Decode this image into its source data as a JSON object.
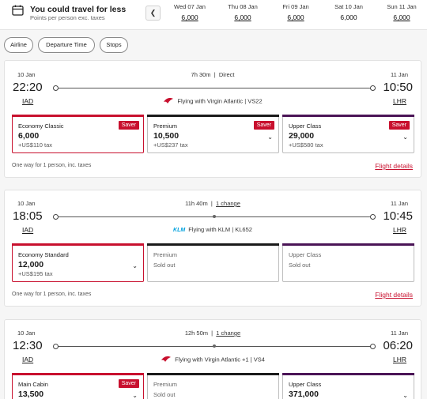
{
  "promo": {
    "title": "You could travel for less",
    "subtitle": "Points per person exc. taxes"
  },
  "date_strip": [
    {
      "label": "Wed 07 Jan",
      "points": "6,000"
    },
    {
      "label": "Thu 08 Jan",
      "points": "6,000"
    },
    {
      "label": "Fri 09 Jan",
      "points": "6,000"
    },
    {
      "label": "Sat 10 Jan",
      "points": "6,000"
    },
    {
      "label": "Sun 11 Jan",
      "points": "6,000"
    }
  ],
  "filters": [
    "Airline",
    "Departure Time",
    "Stops"
  ],
  "colors": {
    "brand": "#c8102e",
    "premium_bar": "#1a1a1a",
    "upper_bar": "#4a1456"
  },
  "icons": {
    "calendar": "calendar-icon",
    "prev": "chevron-left-icon",
    "dropdown": "chevron-down-icon",
    "virgin": "virgin-atlantic-logo",
    "klm": "klm-logo"
  },
  "flights": [
    {
      "dep_date": "10 Jan",
      "arr_date": "11 Jan",
      "duration": "7h 30m",
      "stops": "Direct",
      "dep_time": "22:20",
      "arr_time": "10:50",
      "dep_code": "IAD",
      "arr_code": "LHR",
      "operator": "Flying with Virgin Atlantic | VS22",
      "fares": [
        {
          "cabin": "Economy Classic",
          "points": "6,000",
          "tax": "+US$110 tax",
          "badge": "Saver"
        },
        {
          "cabin": "Premium",
          "points": "10,500",
          "tax": "+US$237 tax",
          "badge": "Saver"
        },
        {
          "cabin": "Upper Class",
          "points": "29,000",
          "tax": "+US$580 tax",
          "badge": "Saver"
        }
      ],
      "note": "One way for 1 person, inc. taxes",
      "details": "Flight details"
    },
    {
      "dep_date": "10 Jan",
      "arr_date": "11 Jan",
      "duration": "11h 40m",
      "stops": "1 change",
      "dep_time": "18:05",
      "arr_time": "10:45",
      "dep_code": "IAD",
      "arr_code": "LHR",
      "operator": "Flying with KLM | KL652",
      "operator_logo_text": "KLM",
      "fares": [
        {
          "cabin": "Economy Standard",
          "points": "12,000",
          "tax": "+US$195 tax"
        },
        {
          "cabin": "Premium",
          "status": "Sold out"
        },
        {
          "cabin": "Upper Class",
          "status": "Sold out"
        }
      ],
      "note": "One way for 1 person, inc. taxes",
      "details": "Flight details"
    },
    {
      "dep_date": "10 Jan",
      "arr_date": "11 Jan",
      "duration": "12h 50m",
      "stops": "1 change",
      "dep_time": "12:30",
      "arr_time": "06:20",
      "dep_code": "IAD",
      "arr_code": "LHR",
      "operator": "Flying with Virgin Atlantic +1 | VS4",
      "fares": [
        {
          "cabin": "Main Cabin",
          "points": "13,500",
          "badge": "Saver"
        },
        {
          "cabin": "Premium",
          "status": "Sold out"
        },
        {
          "cabin": "Upper Class",
          "points": "371,000"
        }
      ]
    }
  ]
}
